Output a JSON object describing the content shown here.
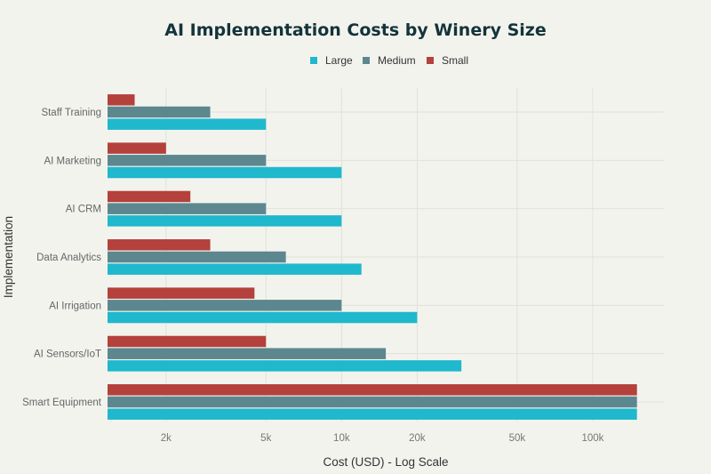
{
  "chart_data": {
    "type": "bar",
    "orientation": "horizontal",
    "title": "AI Implementation Costs by Winery Size",
    "xlabel": "Cost (USD) - Log Scale",
    "ylabel": "Implementation",
    "x_scale": "log",
    "xlim": [
      1170,
      192000
    ],
    "grid": true,
    "legend_position": "top-center",
    "x_ticks": [
      {
        "value": 2000,
        "label": "2k"
      },
      {
        "value": 5000,
        "label": "5k"
      },
      {
        "value": 10000,
        "label": "10k"
      },
      {
        "value": 20000,
        "label": "20k"
      },
      {
        "value": 50000,
        "label": "50k"
      },
      {
        "value": 100000,
        "label": "100k"
      }
    ],
    "categories": [
      "Staff Training",
      "AI Marketing",
      "AI CRM",
      "Data Analytics",
      "AI Irrigation",
      "AI Sensors/IoT",
      "Smart Equipment"
    ],
    "series": [
      {
        "name": "Small",
        "color": "#B4413C",
        "values": [
          1500,
          2000,
          2500,
          3000,
          4500,
          5000,
          150000
        ]
      },
      {
        "name": "Medium",
        "color": "#5D878F",
        "values": [
          3000,
          5000,
          5000,
          6000,
          10000,
          15000,
          150000
        ]
      },
      {
        "name": "Large",
        "color": "#1FB8CD",
        "values": [
          5000,
          10000,
          10000,
          12000,
          20000,
          30000,
          150000
        ]
      }
    ],
    "legend_order": [
      "Large",
      "Medium",
      "Small"
    ]
  }
}
